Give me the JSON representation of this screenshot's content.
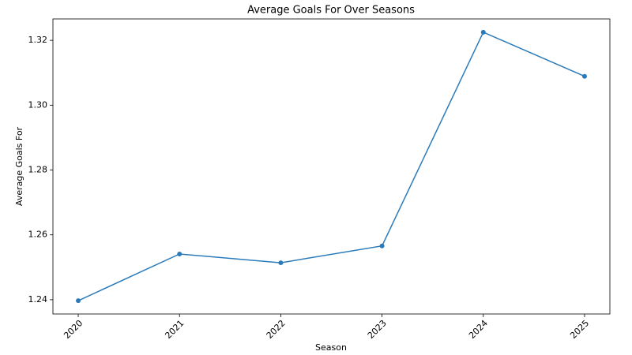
{
  "chart_data": {
    "type": "line",
    "title": "Average Goals For Over Seasons",
    "x_label": "Season",
    "y_label": "Average Goals For",
    "x": [
      2020,
      2021,
      2022,
      2023,
      2024,
      2025
    ],
    "values": [
      1.2397,
      1.2541,
      1.2514,
      1.2566,
      1.3225,
      1.3089
    ],
    "color": "#2b7bba",
    "xlim": [
      2019.75,
      2025.25
    ],
    "xticks": [
      2020,
      2021,
      2022,
      2023,
      2024,
      2025
    ],
    "ylim": [
      1.2356,
      1.3266
    ],
    "yticks": [
      1.24,
      1.26,
      1.28,
      {
        "value": 1.3,
        "label": "1.30"
      },
      1.32
    ],
    "grid": false
  }
}
